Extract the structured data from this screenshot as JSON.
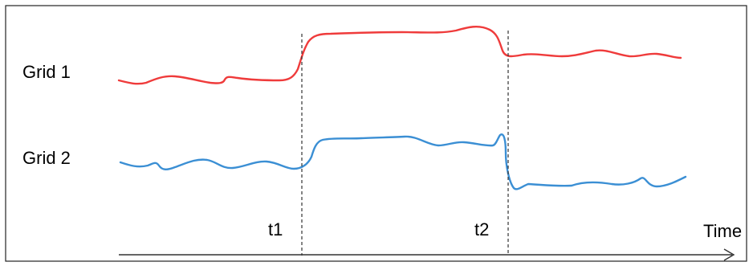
{
  "rows": [
    {
      "label": "Grid 1",
      "color": "#ef3b3b"
    },
    {
      "label": "Grid 2",
      "color": "#3b8fd4"
    }
  ],
  "markers": [
    {
      "label": "t1"
    },
    {
      "label": "t2"
    }
  ],
  "axis": {
    "label": "Time"
  },
  "colors": {
    "border": "#222222",
    "axis": "#333333",
    "marker": "#333333"
  }
}
